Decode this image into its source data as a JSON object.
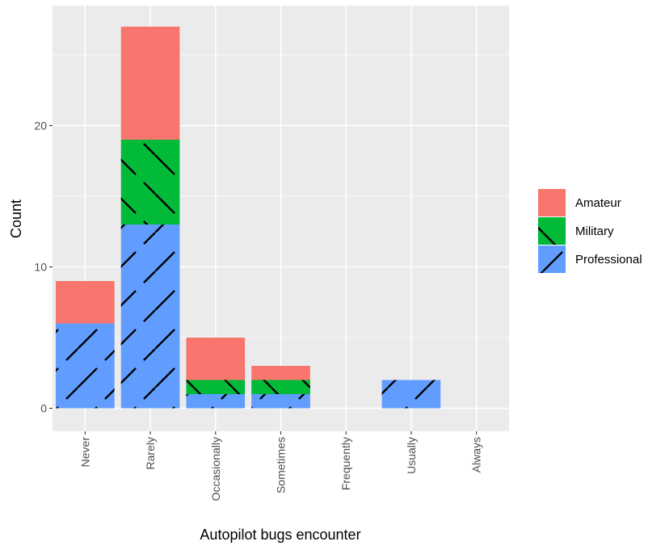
{
  "chart_data": {
    "type": "bar",
    "stacked": true,
    "title": "",
    "xlabel": "Autopilot bugs encounter",
    "ylabel": "Count",
    "categories": [
      "Never",
      "Rarely",
      "Occasionally",
      "Sometimes",
      "Frequently",
      "Usually",
      "Always"
    ],
    "y_ticks": [
      0,
      10,
      20
    ],
    "ylim": [
      0,
      28
    ],
    "grid": true,
    "legend_position": "right",
    "series": [
      {
        "name": "Professional",
        "values": [
          6,
          13,
          1,
          1,
          0,
          2,
          0
        ],
        "color": "#619cff",
        "pattern": "stripe-forward"
      },
      {
        "name": "Military",
        "values": [
          0,
          6,
          1,
          1,
          0,
          0,
          0
        ],
        "color": "#00ba38",
        "pattern": "stripe-backward"
      },
      {
        "name": "Amateur",
        "values": [
          3,
          8,
          3,
          1,
          0,
          0,
          0
        ],
        "color": "#f8766d",
        "pattern": "none"
      }
    ],
    "legend_order": [
      "Amateur",
      "Military",
      "Professional"
    ]
  }
}
